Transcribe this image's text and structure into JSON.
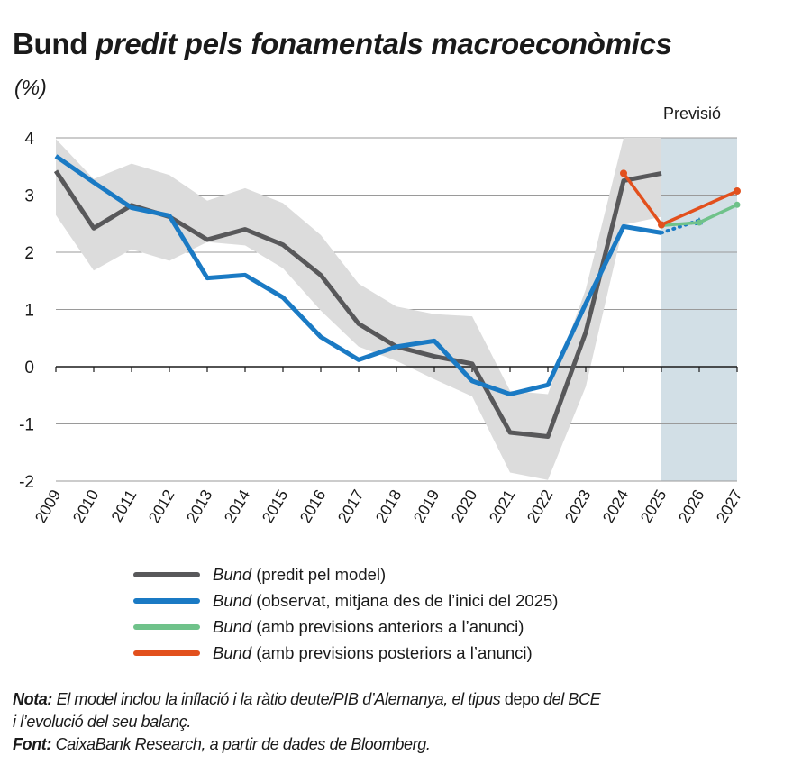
{
  "title_bold": "Bund",
  "title_italic": "predit pels fonamentals macroeconòmics",
  "unit": "(%)",
  "colors": {
    "model": "#58585a",
    "observed": "#1a7ac4",
    "previous": "#6fc28a",
    "posterior": "#e2501d",
    "band": "#dcdcdc",
    "forecast_bg": "#d2dfe6"
  },
  "chart_data": {
    "type": "line",
    "years": [
      "2009",
      "2010",
      "2011",
      "2012",
      "2013",
      "2014",
      "2015",
      "2016",
      "2017",
      "2018",
      "2019",
      "2020",
      "2021",
      "2022",
      "2023",
      "2024",
      "2025",
      "2026",
      "2027"
    ],
    "forecast_label": "Previsió",
    "forecast_start": "2025",
    "ylim": [
      -2,
      4
    ],
    "yticks": [
      -2,
      -1,
      0,
      1,
      2,
      3,
      4
    ],
    "ytick_labels": [
      "-2",
      "-1",
      "0",
      "1",
      "2",
      "3",
      "4"
    ],
    "band": {
      "lower": [
        2.65,
        1.68,
        2.05,
        1.85,
        2.18,
        2.12,
        1.72,
        0.98,
        0.35,
        0.1,
        -0.22,
        -0.52,
        -1.85,
        -1.98,
        -0.35,
        2.48,
        2.62
      ],
      "upper": [
        3.98,
        3.28,
        3.55,
        3.35,
        2.9,
        3.12,
        2.86,
        2.3,
        1.45,
        1.05,
        0.92,
        0.88,
        -0.42,
        -0.48,
        1.35,
        4.0,
        4.0
      ]
    },
    "series": [
      {
        "name": "Bund",
        "desc": "(predit pel model)",
        "key": "model",
        "values": [
          3.42,
          2.42,
          2.82,
          2.62,
          2.22,
          2.4,
          2.13,
          1.6,
          0.75,
          0.35,
          0.18,
          0.05,
          -1.15,
          -1.22,
          0.6,
          3.25,
          3.38
        ]
      },
      {
        "name": "Bund",
        "desc": "(observat, mitjana des de l’inici del 2025)",
        "key": "observed",
        "values": [
          3.68,
          3.22,
          2.78,
          2.64,
          1.55,
          1.6,
          1.21,
          0.52,
          0.12,
          0.35,
          0.45,
          -0.25,
          -0.48,
          -0.32,
          1.1,
          2.45,
          2.34
        ],
        "dotted_to": 2.55
      },
      {
        "name": "Bund",
        "desc": "(amb previsions anteriors a l’anunci)",
        "key": "previous",
        "x": [
          "2025",
          "2026",
          "2027"
        ],
        "values": [
          2.47,
          2.52,
          2.83
        ]
      },
      {
        "name": "Bund",
        "desc": "(amb previsions posteriors a l’anunci)",
        "key": "posterior",
        "x": [
          "2024",
          "2025",
          "2027"
        ],
        "values": [
          3.38,
          2.48,
          3.07
        ]
      }
    ]
  },
  "note_label": "Nota:",
  "note_text_1": "El model inclou la inflació i la ràtio deute/PIB d’Alemanya, el tipus",
  "note_depo": "depo",
  "note_text_2": "del BCE",
  "note_line2": "i l’evolució del seu balanç.",
  "source_label": "Font:",
  "source_text": "CaixaBank Research, a partir de dades de Bloomberg."
}
